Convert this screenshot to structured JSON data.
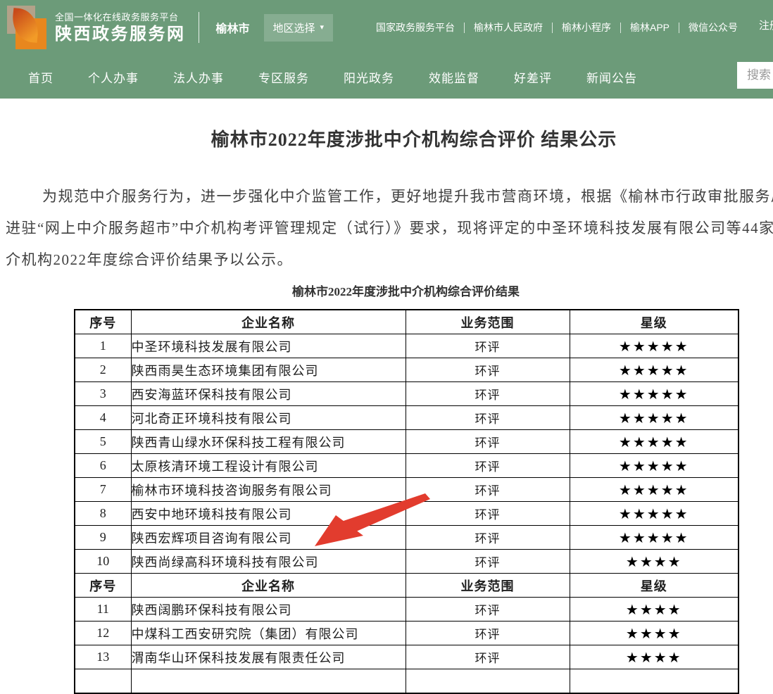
{
  "brand": {
    "platform": "全国一体化在线政务服务平台",
    "site": "陕西政务服务网",
    "city": "榆林市",
    "region_select": "地区选择",
    "caret": "▾"
  },
  "top_links": [
    "国家政务服务平台",
    "榆林市人民政府",
    "榆林小程序",
    "榆林APP",
    "微信公众号"
  ],
  "register": "注册",
  "nav": [
    "首页",
    "个人办事",
    "法人办事",
    "专区服务",
    "阳光政务",
    "效能监督",
    "好差评",
    "新闻公告"
  ],
  "search_placeholder": "搜索",
  "article": {
    "title": "榆林市2022年度涉批中介机构综合评价 结果公示",
    "para_lines": [
      "为规范中介服务行为，进一步强化中介监管工作，更好地提升我市营商环境，根据《榆林市行政审批服务局关",
      "进驻“网上中介服务超市”中介机构考评管理规定（试行）》要求，现将评定的中圣环境科技发展有限公司等44家",
      "介机构2022年度综合评价结果予以公示。"
    ],
    "table_caption": "榆林市2022年度涉批中介机构综合评价结果"
  },
  "table": {
    "headers": [
      "序号",
      "企业名称",
      "业务范围",
      "星级"
    ],
    "star_char": "★",
    "header_repeat_after": 10,
    "rows": [
      {
        "no": "1",
        "name": "中圣环境科技发展有限公司",
        "scope": "环评",
        "stars": 5
      },
      {
        "no": "2",
        "name": "陕西雨昊生态环境集团有限公司",
        "scope": "环评",
        "stars": 5
      },
      {
        "no": "3",
        "name": "西安海蓝环保科技有限公司",
        "scope": "环评",
        "stars": 5
      },
      {
        "no": "4",
        "name": "河北奇正环境科技有限公司",
        "scope": "环评",
        "stars": 5
      },
      {
        "no": "5",
        "name": "陕西青山绿水环保科技工程有限公司",
        "scope": "环评",
        "stars": 5
      },
      {
        "no": "6",
        "name": "太原核清环境工程设计有限公司",
        "scope": "环评",
        "stars": 5
      },
      {
        "no": "7",
        "name": "榆林市环境科技咨询服务有限公司",
        "scope": "环评",
        "stars": 5
      },
      {
        "no": "8",
        "name": "西安中地环境科技有限公司",
        "scope": "环评",
        "stars": 5
      },
      {
        "no": "9",
        "name": "陕西宏辉项目咨询有限公司",
        "scope": "环评",
        "stars": 5
      },
      {
        "no": "10",
        "name": "陕西尚绿高科环境科技有限公司",
        "scope": "环评",
        "stars": 4
      },
      {
        "no": "11",
        "name": "陕西阔鹏环保科技有限公司",
        "scope": "环评",
        "stars": 4
      },
      {
        "no": "12",
        "name": "中煤科工西安研究院（集团）有限公司",
        "scope": "环评",
        "stars": 4
      },
      {
        "no": "13",
        "name": "渭南华山环保科技发展有限责任公司",
        "scope": "环评",
        "stars": 4
      }
    ]
  },
  "colors": {
    "header_green": "#6C9B79",
    "region_button_green": "#84AA8D",
    "arrow_red": "#E23C2E",
    "star_black": "#000000",
    "text_white": "#FFFFFF",
    "search_placeholder_gray": "#999999"
  }
}
